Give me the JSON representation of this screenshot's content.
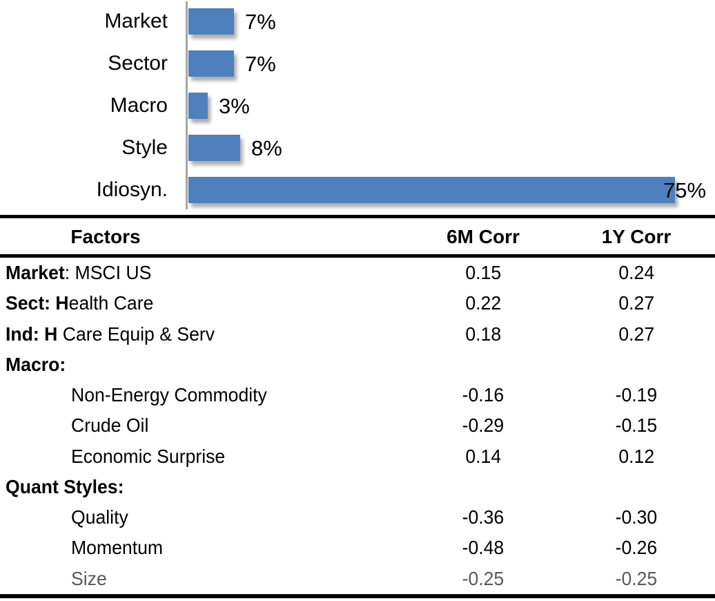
{
  "chart_data": {
    "type": "bar",
    "orientation": "horizontal",
    "title": "",
    "categories": [
      "Market",
      "Sector",
      "Macro",
      "Style",
      "Idiosyn."
    ],
    "values": [
      7,
      7,
      3,
      8,
      75
    ],
    "value_labels": [
      "7%",
      "7%",
      "3%",
      "8%",
      "75%"
    ],
    "xlim": [
      0,
      80
    ],
    "grid": false,
    "legend": "none",
    "bar_color": "#4e80bd",
    "axis_color": "#a6a6a6"
  },
  "table": {
    "headers": {
      "factors": "Factors",
      "corr_6m": "6M Corr",
      "corr_1y": "1Y Corr"
    },
    "rows": [
      {
        "segments": [
          {
            "text": "Market",
            "bold": true
          },
          {
            "text": ": MSCI US",
            "bold": false
          }
        ],
        "corr_6m": "0.15",
        "corr_1y": "0.24",
        "indent": 0,
        "muted": false
      },
      {
        "segments": [
          {
            "text": "Sect: H",
            "bold": true
          },
          {
            "text": "ealth Care",
            "bold": false
          }
        ],
        "corr_6m": "0.22",
        "corr_1y": "0.27",
        "indent": 0,
        "muted": false
      },
      {
        "segments": [
          {
            "text": "Ind: H",
            "bold": true
          },
          {
            "text": " Care Equip & Serv",
            "bold": false
          }
        ],
        "corr_6m": "0.18",
        "corr_1y": "0.27",
        "indent": 0,
        "muted": false
      },
      {
        "segments": [
          {
            "text": "Macro:",
            "bold": true
          }
        ],
        "corr_6m": "",
        "corr_1y": "",
        "indent": 0,
        "muted": false
      },
      {
        "segments": [
          {
            "text": "Non-Energy Commodity",
            "bold": false
          }
        ],
        "corr_6m": "-0.16",
        "corr_1y": "-0.19",
        "indent": 1,
        "muted": false
      },
      {
        "segments": [
          {
            "text": "Crude Oil",
            "bold": false
          }
        ],
        "corr_6m": "-0.29",
        "corr_1y": "-0.15",
        "indent": 1,
        "muted": false
      },
      {
        "segments": [
          {
            "text": "Economic Surprise",
            "bold": false
          }
        ],
        "corr_6m": "0.14",
        "corr_1y": "0.12",
        "indent": 1,
        "muted": false
      },
      {
        "segments": [
          {
            "text": "Quant Styles:",
            "bold": true
          }
        ],
        "corr_6m": "",
        "corr_1y": "",
        "indent": 0,
        "muted": false
      },
      {
        "segments": [
          {
            "text": "Quality",
            "bold": false
          }
        ],
        "corr_6m": "-0.36",
        "corr_1y": "-0.30",
        "indent": 1,
        "muted": false
      },
      {
        "segments": [
          {
            "text": "Momentum",
            "bold": false
          }
        ],
        "corr_6m": "-0.48",
        "corr_1y": "-0.26",
        "indent": 1,
        "muted": false
      },
      {
        "segments": [
          {
            "text": "Size",
            "bold": false
          }
        ],
        "corr_6m": "-0.25",
        "corr_1y": "-0.25",
        "indent": 1,
        "muted": true
      }
    ]
  }
}
